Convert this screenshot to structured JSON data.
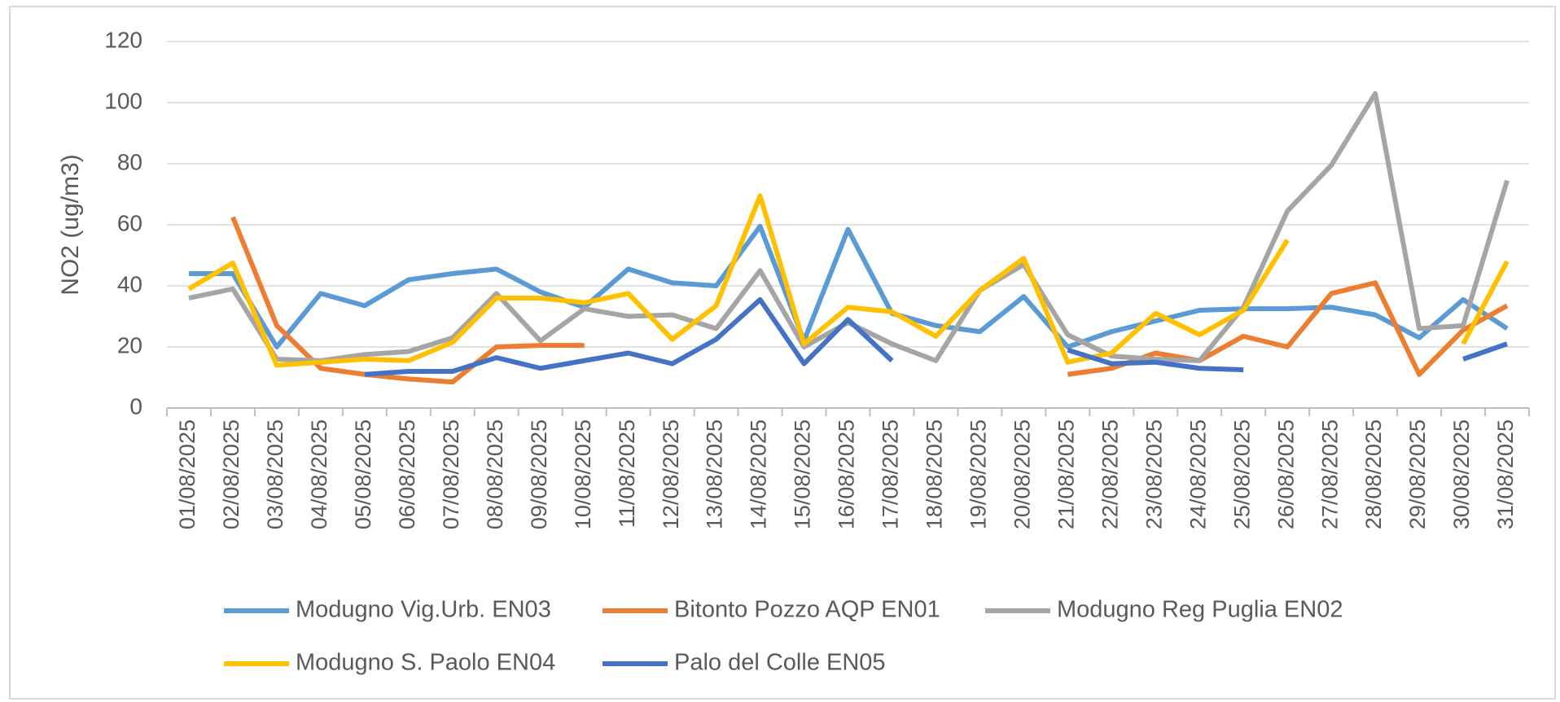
{
  "chart_data": {
    "type": "line",
    "y_label": "NO2 (ug/m3)",
    "categories": [
      "01/08/2025",
      "02/08/2025",
      "03/08/2025",
      "04/08/2025",
      "05/08/2025",
      "06/08/2025",
      "07/08/2025",
      "08/08/2025",
      "09/08/2025",
      "10/08/2025",
      "11/08/2025",
      "12/08/2025",
      "13/08/2025",
      "14/08/2025",
      "15/08/2025",
      "16/08/2025",
      "17/08/2025",
      "18/08/2025",
      "19/08/2025",
      "20/08/2025",
      "21/08/2025",
      "22/08/2025",
      "23/08/2025",
      "24/08/2025",
      "25/08/2025",
      "26/08/2025",
      "27/08/2025",
      "28/08/2025",
      "29/08/2025",
      "30/08/2025",
      "31/08/2025"
    ],
    "series": [
      {
        "name": "Modugno Vig.Urb. EN03",
        "color": "#5b9bd5",
        "values": [
          44,
          44,
          20,
          37.5,
          33.5,
          42,
          44,
          45.5,
          38,
          33,
          45.5,
          41,
          40,
          59.5,
          22,
          58.5,
          31,
          27,
          25,
          36.5,
          20,
          25,
          28.5,
          32,
          32.5,
          32.5,
          33,
          30.5,
          23,
          35.5,
          26
        ]
      },
      {
        "name": "Bitonto Pozzo AQP EN01",
        "color": "#ed7d31",
        "values": [
          null,
          62.5,
          27,
          13,
          11,
          9.5,
          8.5,
          20,
          20.5,
          20.5,
          null,
          null,
          null,
          null,
          null,
          null,
          null,
          null,
          null,
          null,
          11,
          13,
          18,
          15.5,
          23.5,
          20,
          37.5,
          41,
          11,
          25.5,
          33.5
        ]
      },
      {
        "name": "Modugno Reg Puglia EN02",
        "color": "#a5a5a5",
        "values": [
          36,
          39,
          16,
          15.5,
          17.5,
          18.5,
          23,
          37.5,
          22,
          32.5,
          30,
          30.5,
          26,
          45,
          20,
          28,
          21,
          15.5,
          38.5,
          47,
          24,
          17,
          16,
          15.5,
          33,
          64.5,
          79.5,
          103,
          26,
          27,
          74.5
        ]
      },
      {
        "name": "Modugno S. Paolo EN04",
        "color": "#ffc000",
        "values": [
          39,
          47.5,
          14,
          15,
          16,
          15.5,
          21.5,
          36,
          36,
          34.5,
          37.5,
          22.5,
          33.5,
          69.5,
          21,
          33,
          31.5,
          23.5,
          38.5,
          49,
          15,
          18,
          31,
          24,
          32,
          55,
          null,
          null,
          null,
          21,
          48
        ]
      },
      {
        "name": "Palo del Colle EN05",
        "color": "#4472c4",
        "values": [
          null,
          null,
          null,
          null,
          11,
          12,
          12,
          16.5,
          13,
          15.5,
          18,
          14.5,
          22.5,
          35.5,
          14.5,
          29,
          15.5,
          null,
          null,
          null,
          19,
          14.5,
          15,
          13,
          12.5,
          null,
          null,
          null,
          null,
          16,
          21
        ]
      }
    ],
    "ylim": [
      0,
      120
    ],
    "yticks": [
      0,
      20,
      40,
      60,
      80,
      100,
      120
    ],
    "grid": true
  }
}
